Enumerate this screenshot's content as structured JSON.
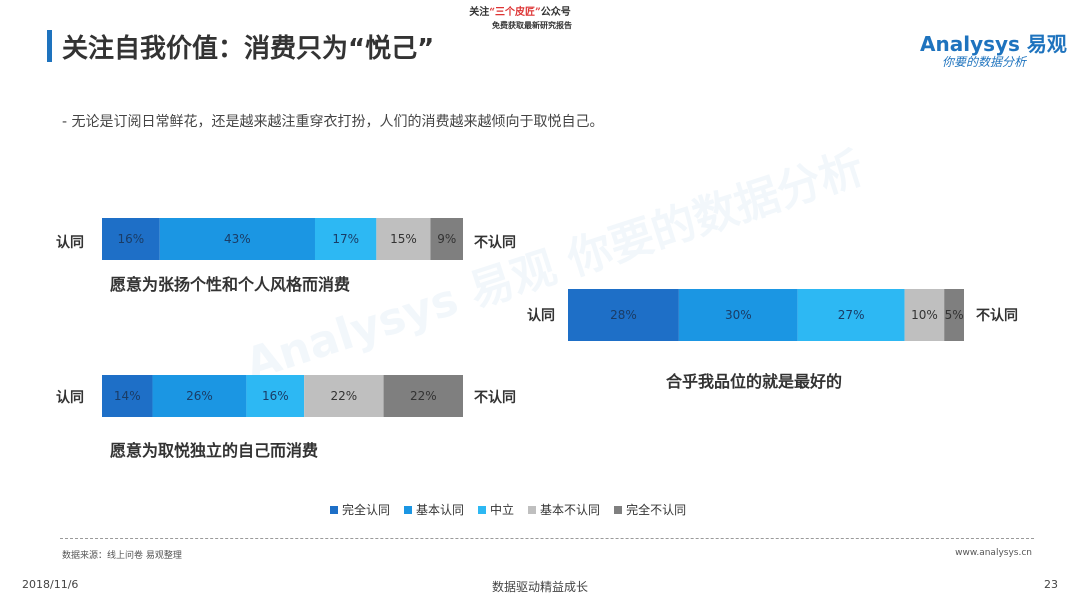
{
  "header": {
    "title": "关注自我价值：消费只为“悦己”",
    "promo_line1_a": "关注",
    "promo_line1_b": "“三个皮匠”",
    "promo_line1_c": "公众号",
    "promo_line2": "免费获取最新研究报告"
  },
  "logo": {
    "brand_en": "Analysys",
    "brand_cn": "易观",
    "slogan": "你要的数据分析",
    "watermark": "Analysys 易观 你要的数据分析"
  },
  "subtitle": "-  无论是订阅日常鲜花，还是越来越注重穿衣打扮，人们的消费越来越倾向于取悦自己。",
  "chart_data": {
    "type": "bar",
    "stacked": true,
    "orientation": "horizontal",
    "series": [
      {
        "name": "完全认同",
        "color": "#1e6fc7"
      },
      {
        "name": "基本认同",
        "color": "#1b96e3"
      },
      {
        "name": "中立",
        "color": "#2db8f3"
      },
      {
        "name": "基本不认同",
        "color": "#bfbfbf"
      },
      {
        "name": "完全不认同",
        "color": "#7f7f7f"
      }
    ],
    "bars": [
      {
        "label": "愿意为张扬个性和个人风格而消费",
        "values": [
          16,
          43,
          17,
          15,
          9
        ],
        "value_labels": [
          "16%",
          "43%",
          "17%",
          "15%",
          "9%"
        ],
        "left_label": "认同",
        "right_label": "不认同"
      },
      {
        "label": "合乎我品位的就是最好的",
        "values": [
          28,
          30,
          27,
          10,
          5
        ],
        "value_labels": [
          "28%",
          "30%",
          "27%",
          "10%",
          "5%"
        ],
        "left_label": "认同",
        "right_label": "不认同"
      },
      {
        "label": "愿意为取悦独立的自己而消费",
        "values": [
          14,
          26,
          16,
          22,
          22
        ],
        "value_labels": [
          "14%",
          "26%",
          "16%",
          "22%",
          "22%"
        ],
        "left_label": "认同",
        "right_label": "不认同"
      }
    ],
    "legend_position": "bottom"
  },
  "footer": {
    "source": "数据来源：线上问卷 易观整理",
    "site": "www.analysys.cn",
    "date": "2018/11/6",
    "center": "数据驱动精益成长",
    "page": "23"
  }
}
